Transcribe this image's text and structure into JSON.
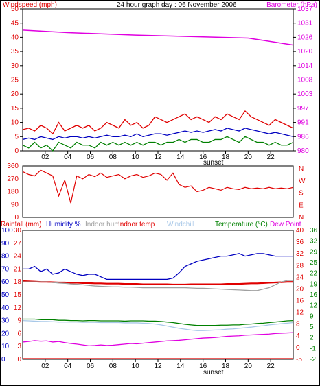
{
  "header": {
    "windspeed_label": "Windspeed (mph)",
    "title": "24 hour graph day : 06 November 2006",
    "barometer_label": "Barometer (hPa)"
  },
  "colors": {
    "red": "#e00000",
    "green": "#008000",
    "blue": "#0000c0",
    "magenta": "#e000e0",
    "gray": "#a0a0a0",
    "lightblue": "#a8c8e8"
  },
  "sunset_label": "sunset",
  "x_ticks": [
    "02",
    "04",
    "06",
    "08",
    "10",
    "12",
    "14",
    "16",
    "18",
    "20",
    "22"
  ],
  "chart_data": [
    {
      "type": "line",
      "id": "wind",
      "left_axis": {
        "label": "Windspeed (mph)",
        "ticks": [
          0,
          5,
          10,
          15,
          20,
          25,
          30,
          35,
          40,
          45,
          50
        ],
        "range": [
          0,
          50
        ]
      },
      "right_axis": {
        "label": "Barometer (hPa)",
        "ticks": [
          980,
          986,
          991,
          997,
          1003,
          1008,
          1014,
          1020,
          1026,
          1031,
          1037
        ]
      },
      "series": [
        {
          "role": "wind-gust",
          "color": "red",
          "axis": "left",
          "values": [
            7.5,
            8,
            7,
            9,
            8,
            6,
            10,
            7,
            8,
            9,
            8,
            9,
            7,
            8,
            10,
            9,
            8,
            11,
            9,
            10,
            8,
            9,
            12,
            11,
            10,
            11,
            12,
            13,
            11,
            12,
            11,
            10,
            12,
            11,
            13,
            12,
            11,
            14,
            12,
            11,
            10,
            9,
            11,
            10,
            9,
            8
          ]
        },
        {
          "role": "wind-avg",
          "color": "blue",
          "axis": "left",
          "values": [
            4,
            4.5,
            4,
            5,
            4.5,
            4,
            5,
            4.5,
            5,
            5,
            4.5,
            5,
            4.5,
            5,
            5.5,
            5,
            5,
            5.5,
            5,
            6,
            5,
            5.5,
            6,
            6,
            5.5,
            6,
            6.5,
            7,
            6.5,
            7,
            6.5,
            7,
            7.5,
            7,
            8,
            7.5,
            7,
            8,
            7.5,
            7,
            6.5,
            6,
            6.5,
            6,
            5.5,
            5
          ]
        },
        {
          "role": "wind-low",
          "color": "green",
          "axis": "left",
          "values": [
            2,
            1,
            3,
            1,
            2,
            0,
            3,
            2,
            1,
            3,
            2,
            2,
            1,
            3,
            2,
            3,
            2,
            3,
            2,
            3,
            2,
            3,
            3,
            2,
            3,
            3,
            4,
            3,
            4,
            4,
            3,
            3,
            4,
            4,
            5,
            4,
            3,
            5,
            4,
            3,
            3,
            2,
            3,
            2,
            2,
            3
          ]
        },
        {
          "role": "barometer",
          "color": "magenta",
          "axis": "right",
          "range": [
            980,
            1037
          ],
          "x": [
            0,
            4,
            10,
            20,
            24
          ],
          "values": [
            1028.5,
            1027.5,
            1026.5,
            1025.3,
            1022.5
          ]
        }
      ]
    },
    {
      "type": "line",
      "id": "direction",
      "left_axis": {
        "ticks": [
          0,
          90,
          180,
          270,
          360
        ],
        "range": [
          0,
          360
        ]
      },
      "right_axis": {
        "ticks": [
          "N",
          "W",
          "S",
          "E",
          "N"
        ]
      },
      "series": [
        {
          "role": "wind-direction",
          "color": "red",
          "values": [
            320,
            300,
            290,
            330,
            310,
            290,
            150,
            260,
            100,
            290,
            270,
            300,
            285,
            310,
            280,
            290,
            300,
            270,
            290,
            300,
            280,
            290,
            310,
            300,
            260,
            310,
            230,
            210,
            220,
            180,
            190,
            210,
            200,
            190,
            210,
            200,
            195,
            210,
            200,
            205,
            200,
            210,
            200,
            205,
            200,
            210
          ]
        }
      ]
    },
    {
      "type": "line",
      "id": "temperature",
      "headers": {
        "rainfall": "Rainfall (mm)",
        "humidity": "Humidity %",
        "indoor_hum": "Indoor hum",
        "indoor_temp": "Indoor temp",
        "windchill": "Windchill",
        "temperature": "Temperature (°C)",
        "dew_point": "Dew Point"
      },
      "left_axis_rain": {
        "ticks": [
          0,
          3,
          6,
          9,
          12,
          15,
          18,
          21,
          24,
          27,
          30
        ],
        "range": [
          0,
          30
        ]
      },
      "left_axis_humidity": {
        "ticks": [
          0,
          10,
          20,
          30,
          40,
          50,
          60,
          70,
          80,
          90,
          100
        ],
        "range": [
          0,
          100
        ]
      },
      "right_axis_inner": {
        "ticks": [
          -5,
          0,
          4,
          8,
          12,
          16,
          20,
          24,
          28,
          32,
          36,
          40
        ]
      },
      "right_axis_outer": {
        "ticks": [
          -2,
          -1,
          2,
          5,
          9,
          12,
          16,
          19,
          22,
          25,
          29,
          32,
          36
        ],
        "range": [
          -5,
          40
        ]
      },
      "series": [
        {
          "role": "humidity",
          "color": "blue",
          "scale": "humidity",
          "values": [
            70,
            70,
            72,
            68,
            70,
            66,
            67,
            70,
            68,
            66,
            65,
            66,
            66,
            64,
            62,
            62,
            62,
            62,
            62,
            62,
            62,
            62,
            62,
            62,
            62,
            63,
            67,
            72,
            74,
            76,
            77,
            78,
            79,
            80,
            80,
            81,
            82,
            80,
            81,
            82,
            82,
            81,
            80,
            80,
            80,
            80
          ]
        },
        {
          "role": "indoor-temp",
          "color": "red",
          "scale": "temp",
          "values": [
            22.3,
            22.2,
            22.1,
            22,
            22,
            21.9,
            21.8,
            21.8,
            21.7,
            21.7,
            21.6,
            21.6,
            21.5,
            21.5,
            21.4,
            21.4,
            21.4,
            21.3,
            21.3,
            21.3,
            21.2,
            21.2,
            21.2,
            21.2,
            21.2,
            21.1,
            21.1,
            21.1,
            21.2,
            21.2,
            21.2,
            21.2,
            21.2,
            21.2,
            21.3,
            21.3,
            21.3,
            21.4,
            21.5,
            21.5,
            21.6,
            21.7,
            21.8,
            21.9,
            22,
            22
          ]
        },
        {
          "role": "indoor-hum",
          "color": "gray",
          "scale": "temp",
          "values": [
            22,
            22,
            22,
            22,
            22,
            21.8,
            21.6,
            21.5,
            21.3,
            21.2,
            21,
            20.8,
            20.6,
            20.5,
            20.4,
            20.3,
            20.3,
            20.2,
            20.2,
            20.1,
            20,
            20,
            20,
            20,
            20,
            20,
            20,
            20,
            19.9,
            19.8,
            19.8,
            19.7,
            19.6,
            19.5,
            19.4,
            19.3,
            19.2,
            19.1,
            19,
            19,
            19.5,
            20,
            21,
            22,
            22.5,
            22.5
          ]
        },
        {
          "role": "temperature",
          "color": "green",
          "scale": "temp",
          "values": [
            9,
            9,
            9,
            8.8,
            8.8,
            8.8,
            8.6,
            8.6,
            8.5,
            8.5,
            8.4,
            8.5,
            8.5,
            8.4,
            8.4,
            8.4,
            8.4,
            8.3,
            8.4,
            8.4,
            8.4,
            8.3,
            8.3,
            8.2,
            8,
            7.8,
            7.5,
            7.2,
            7,
            6.8,
            6.8,
            6.8,
            6.8,
            6.9,
            6.9,
            7,
            7,
            7.2,
            7.3,
            7.5,
            7.6,
            7.8,
            8,
            8.2,
            8.4,
            8.5
          ]
        },
        {
          "role": "windchill",
          "color": "lightblue",
          "scale": "temp",
          "values": [
            8.5,
            8.4,
            8.3,
            8.2,
            8.2,
            8.1,
            8,
            8,
            8,
            8,
            7.9,
            7.9,
            7.9,
            7.8,
            7.8,
            7.8,
            7.8,
            7.7,
            7.7,
            7.7,
            7.6,
            7.5,
            7.3,
            7,
            6.6,
            6.2,
            5.8,
            5.5,
            5.2,
            5,
            5,
            5.1,
            5.2,
            5.3,
            5.5,
            5.6,
            5.8,
            6,
            6.2,
            6.5,
            6.7,
            7,
            7.2,
            7.4,
            7.6,
            7.8
          ]
        },
        {
          "role": "dew-point",
          "color": "magenta",
          "scale": "temp",
          "values": [
            1,
            1.2,
            1.5,
            1.3,
            1.4,
            1,
            1.2,
            0.8,
            0.5,
            0.3,
            0,
            -0.3,
            -0.2,
            0,
            -0.2,
            -0.1,
            0.1,
            0.3,
            0.5,
            0.4,
            0.6,
            0.8,
            1,
            1.2,
            1.4,
            1.5,
            1.6,
            1.8,
            2,
            2.2,
            2.4,
            2.5,
            2.6,
            2.8,
            3,
            3.1,
            3.2,
            3.4,
            3.5,
            3.6,
            3.7,
            3.8,
            4,
            4.1,
            4.2,
            4.3
          ]
        },
        {
          "role": "rainfall",
          "color": "red",
          "scale": "rain",
          "values": [
            0,
            0
          ]
        }
      ]
    }
  ]
}
